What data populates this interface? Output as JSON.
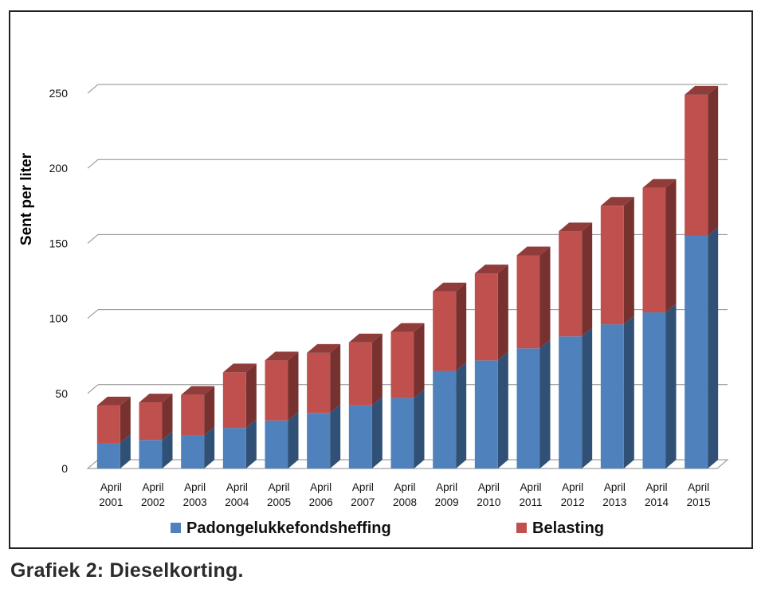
{
  "chart_data": {
    "type": "bar",
    "stacked": true,
    "three_d": true,
    "categories": [
      [
        "April",
        "2001"
      ],
      [
        "April",
        "2002"
      ],
      [
        "April",
        "2003"
      ],
      [
        "April",
        "2004"
      ],
      [
        "April",
        "2005"
      ],
      [
        "April",
        "2006"
      ],
      [
        "April",
        "2007"
      ],
      [
        "April",
        "2008"
      ],
      [
        "April",
        "2009"
      ],
      [
        "April",
        "2010"
      ],
      [
        "April",
        "2011"
      ],
      [
        "April",
        "2012"
      ],
      [
        "April",
        "2013"
      ],
      [
        "April",
        "2014"
      ],
      [
        "April",
        "2015"
      ]
    ],
    "series": [
      {
        "name": "Padongelukkefondsheffing",
        "color": "#4f81bd",
        "values": [
          17,
          19,
          22,
          27,
          32,
          37,
          42,
          47,
          65,
          72,
          80,
          88,
          96,
          104,
          155
        ]
      },
      {
        "name": "Belasting",
        "color": "#c0504d",
        "values": [
          25,
          25,
          27,
          37,
          40,
          40,
          42,
          44,
          53,
          58,
          62,
          70,
          79,
          83,
          94
        ]
      }
    ],
    "ylabel": "Sent per liter",
    "yticks": [
      0,
      50,
      100,
      150,
      200,
      250
    ],
    "ylim": [
      0,
      250
    ],
    "grid": true,
    "legend_position": "bottom"
  },
  "caption": "Grafiek 2: Dieselkorting."
}
